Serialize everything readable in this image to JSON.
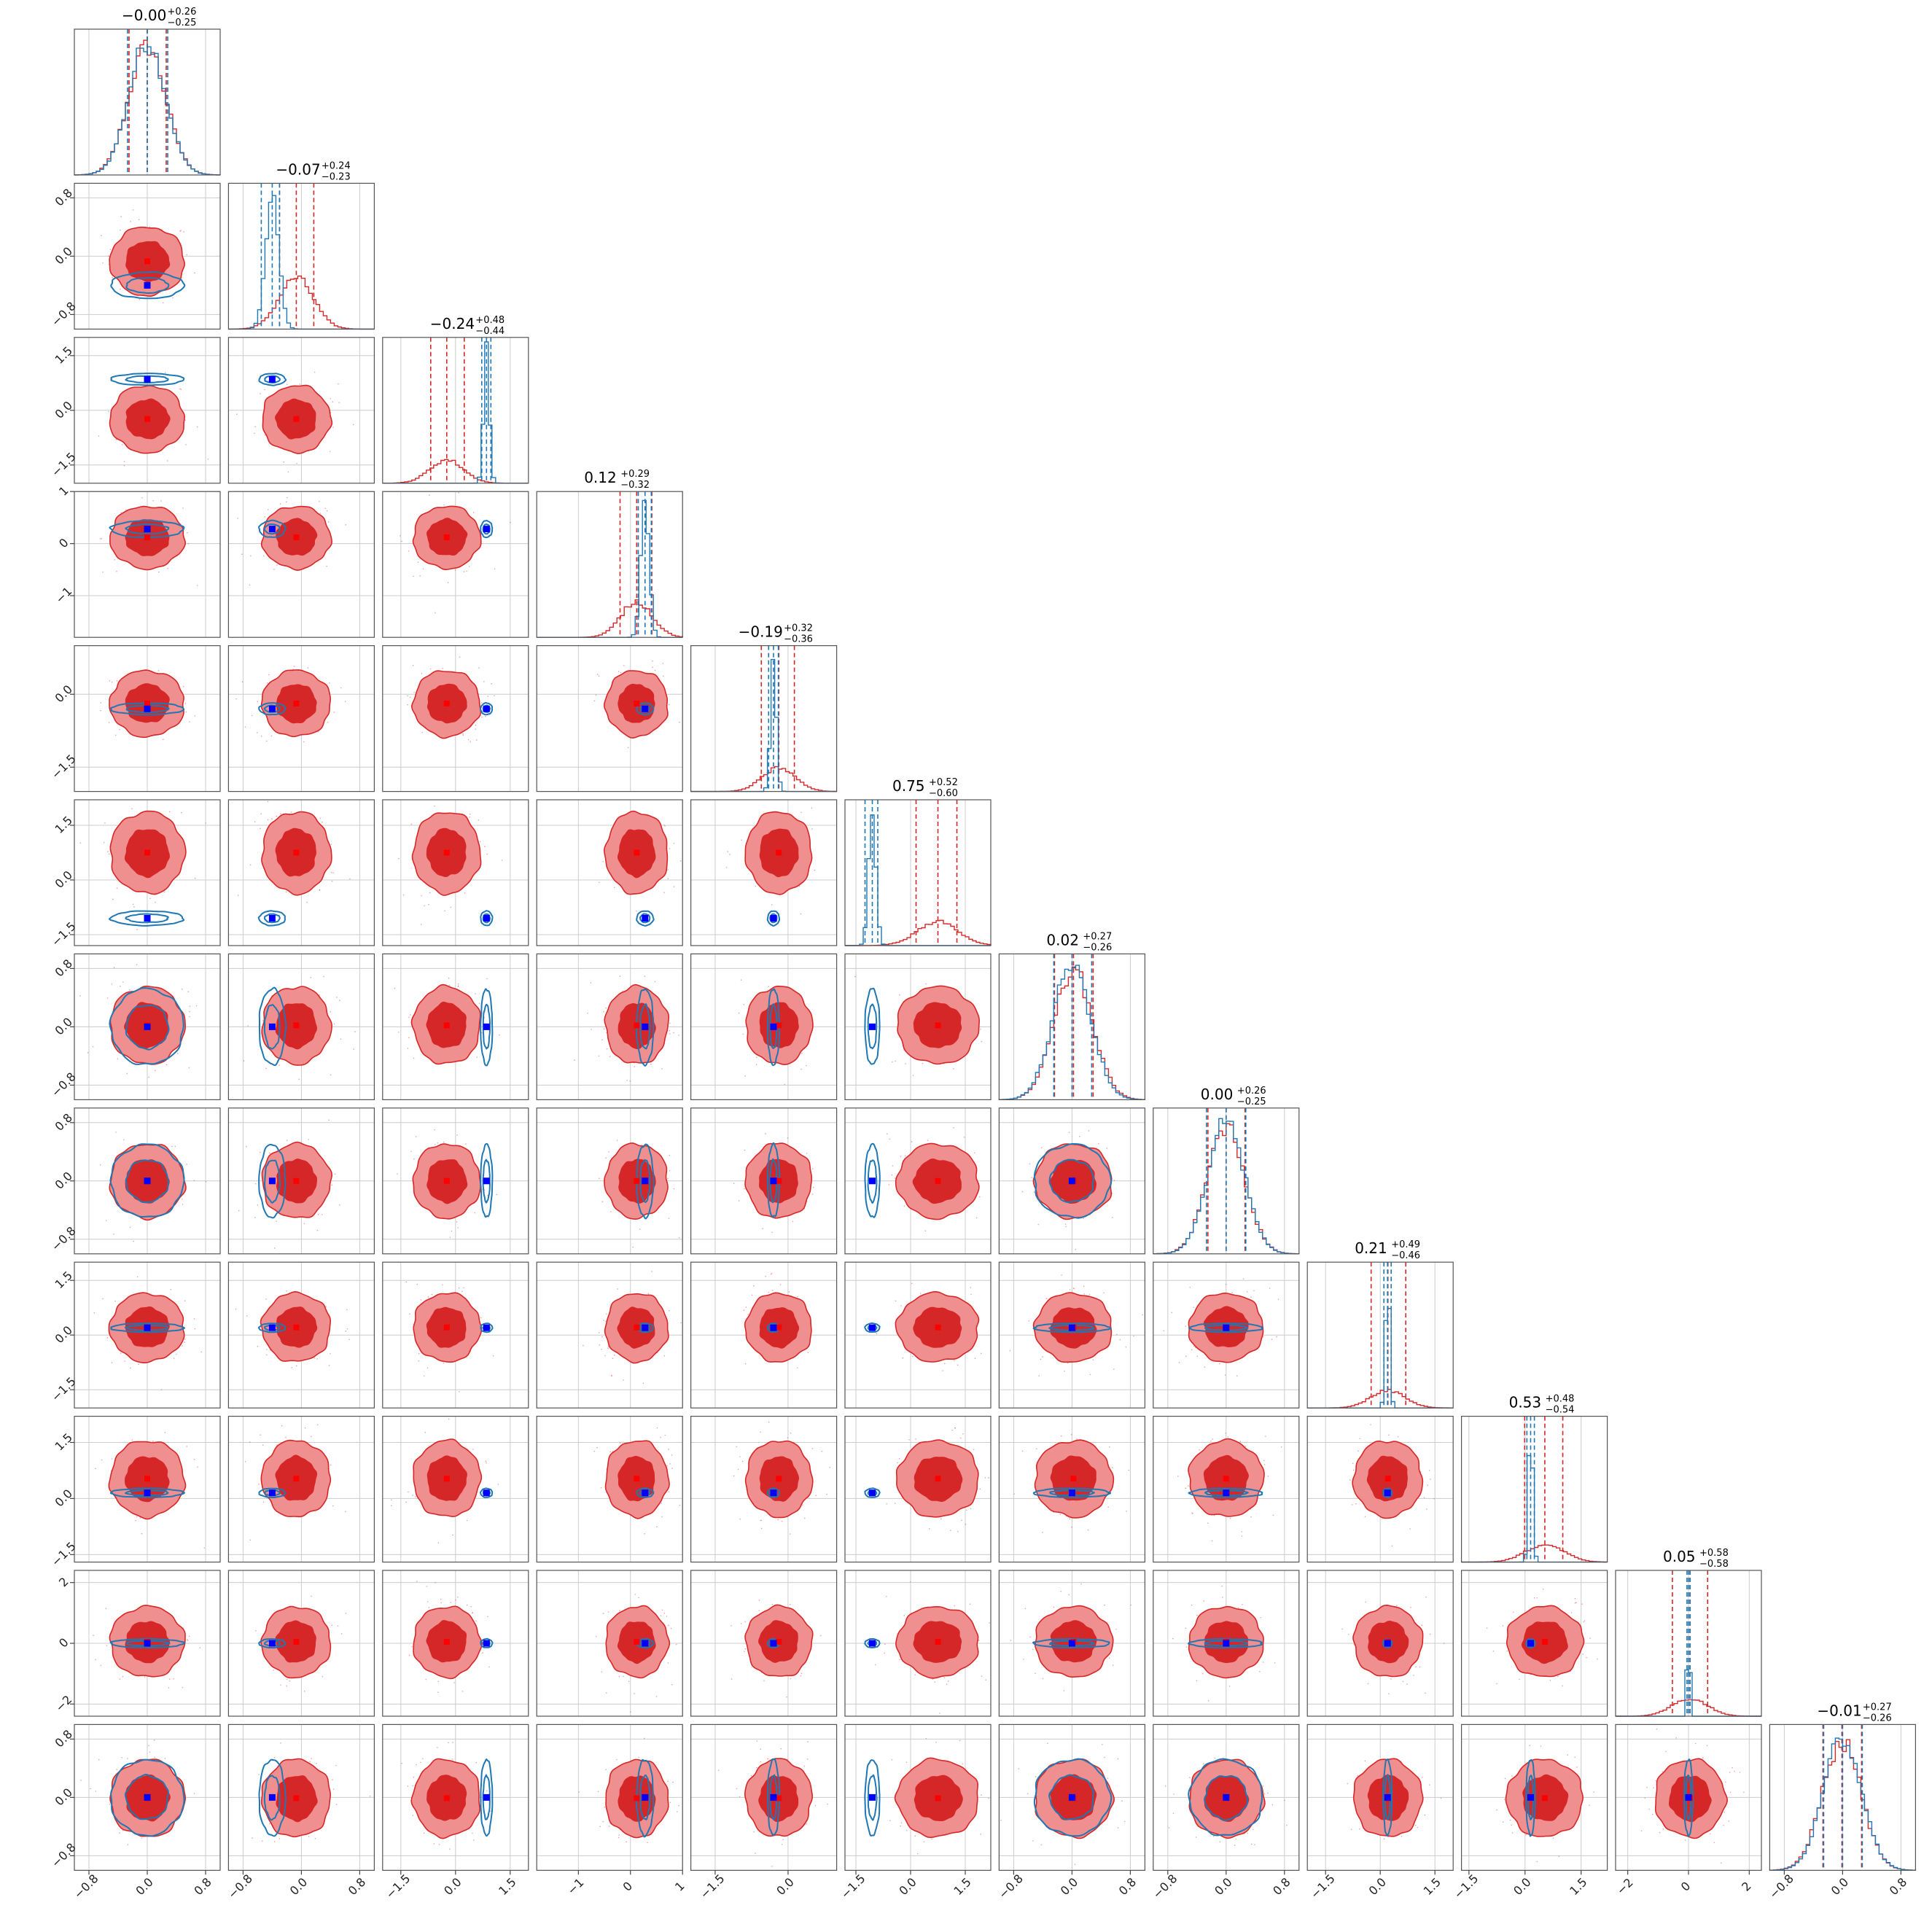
{
  "chart_data": {
    "type": "corner",
    "n_params": 12,
    "colors": {
      "red_fill_inner": "#d62728",
      "red_fill_outer": "#f08f8f",
      "red_line": "#d62728",
      "blue_line": "#1f77b4",
      "blue_marker": "#0000ff",
      "red_marker": "#ff0000"
    },
    "titles": [
      {
        "median": "−0.00",
        "plus": "+0.26",
        "minus": "−0.25"
      },
      {
        "median": "−0.07",
        "plus": "+0.24",
        "minus": "−0.23"
      },
      {
        "median": "−0.24",
        "plus": "+0.48",
        "minus": "−0.44"
      },
      {
        "median": "0.12",
        "plus": "+0.29",
        "minus": "−0.32"
      },
      {
        "median": "−0.19",
        "plus": "+0.32",
        "minus": "−0.36"
      },
      {
        "median": "0.75",
        "plus": "+0.52",
        "minus": "−0.60"
      },
      {
        "median": "0.02",
        "plus": "+0.27",
        "minus": "−0.26"
      },
      {
        "median": "0.00",
        "plus": "+0.26",
        "minus": "−0.25"
      },
      {
        "median": "0.21",
        "plus": "+0.49",
        "minus": "−0.46"
      },
      {
        "median": "0.53",
        "plus": "+0.48",
        "minus": "−0.54"
      },
      {
        "median": "0.05",
        "plus": "+0.58",
        "minus": "−0.58"
      },
      {
        "median": "−0.01",
        "plus": "+0.27",
        "minus": "−0.26"
      }
    ],
    "params": [
      {
        "range": [
          -1.0,
          1.0
        ],
        "ticks": [
          -0.8,
          0.0,
          0.8
        ],
        "tick_labels": [
          "−0.8",
          "0.0",
          "0.8"
        ],
        "red": {
          "mean": 0.0,
          "sd": 0.255
        },
        "blue": {
          "mean": 0.0,
          "sd": 0.25
        },
        "truth": 0.0,
        "red_q": [
          -0.25,
          0.26
        ],
        "blue_q": [
          -0.27,
          0.28
        ]
      },
      {
        "range": [
          -1.0,
          1.0
        ],
        "ticks": [
          -0.8,
          0.0,
          0.8
        ],
        "tick_labels": [
          "−0.8",
          "0.0",
          "0.8"
        ],
        "red": {
          "mean": -0.07,
          "sd": 0.235
        },
        "blue": {
          "mean": -0.4,
          "sd": 0.09
        },
        "truth": -0.4,
        "red_q": [
          -0.3,
          0.17
        ],
        "blue_q": [
          -0.55,
          -0.3
        ]
      },
      {
        "range": [
          -2.0,
          2.0
        ],
        "ticks": [
          -1.5,
          0.0,
          1.5
        ],
        "tick_labels": [
          "−1.5",
          "0.0",
          "1.5"
        ],
        "red": {
          "mean": -0.24,
          "sd": 0.46
        },
        "blue": {
          "mean": 0.85,
          "sd": 0.08
        },
        "truth": 0.85,
        "red_q": [
          -0.68,
          0.24
        ],
        "blue_q": [
          0.72,
          0.97
        ]
      },
      {
        "range": [
          -1.8,
          1.0
        ],
        "ticks": [
          -1.0,
          0.0,
          1.0
        ],
        "tick_labels": [
          "−1",
          "0",
          "1"
        ],
        "red": {
          "mean": 0.12,
          "sd": 0.3
        },
        "blue": {
          "mean": 0.28,
          "sd": 0.08
        },
        "truth": 0.28,
        "red_q": [
          -0.2,
          0.41
        ],
        "blue_q": [
          0.15,
          0.4
        ]
      },
      {
        "range": [
          -2.0,
          1.0
        ],
        "ticks": [
          -1.5,
          0.0
        ],
        "tick_labels": [
          "−1.5",
          "0.0"
        ],
        "red": {
          "mean": -0.19,
          "sd": 0.34
        },
        "blue": {
          "mean": -0.3,
          "sd": 0.06
        },
        "truth": -0.3,
        "red_q": [
          -0.55,
          0.13
        ],
        "blue_q": [
          -0.4,
          -0.2
        ]
      },
      {
        "range": [
          -1.8,
          2.2
        ],
        "ticks": [
          -1.5,
          0.0,
          1.5
        ],
        "tick_labels": [
          "−1.5",
          "0.0",
          "1.5"
        ],
        "red": {
          "mean": 0.75,
          "sd": 0.56
        },
        "blue": {
          "mean": -1.05,
          "sd": 0.1
        },
        "truth": -1.05,
        "red_q": [
          0.15,
          1.27
        ],
        "blue_q": [
          -1.25,
          -0.9
        ]
      },
      {
        "range": [
          -1.0,
          1.0
        ],
        "ticks": [
          -0.8,
          0.0,
          0.8
        ],
        "tick_labels": [
          "−0.8",
          "0.0",
          "0.8"
        ],
        "red": {
          "mean": 0.02,
          "sd": 0.265
        },
        "blue": {
          "mean": 0.0,
          "sd": 0.26
        },
        "truth": 0.0,
        "red_q": [
          -0.24,
          0.29
        ],
        "blue_q": [
          -0.25,
          0.27
        ]
      },
      {
        "range": [
          -1.0,
          1.0
        ],
        "ticks": [
          -0.8,
          0.0,
          0.8
        ],
        "tick_labels": [
          "−0.8",
          "0.0",
          "0.8"
        ],
        "red": {
          "mean": 0.0,
          "sd": 0.255
        },
        "blue": {
          "mean": 0.0,
          "sd": 0.25
        },
        "truth": 0.0,
        "red_q": [
          -0.25,
          0.26
        ],
        "blue_q": [
          -0.27,
          0.27
        ]
      },
      {
        "range": [
          -2.0,
          2.0
        ],
        "ticks": [
          -1.5,
          0.0,
          1.5
        ],
        "tick_labels": [
          "−1.5",
          "0.0",
          "1.5"
        ],
        "red": {
          "mean": 0.21,
          "sd": 0.47
        },
        "blue": {
          "mean": 0.2,
          "sd": 0.06
        },
        "truth": 0.2,
        "red_q": [
          -0.25,
          0.7
        ],
        "blue_q": [
          0.1,
          0.3
        ]
      },
      {
        "range": [
          -1.7,
          2.2
        ],
        "ticks": [
          -1.5,
          0.0,
          1.5
        ],
        "tick_labels": [
          "−1.5",
          "0.0",
          "1.5"
        ],
        "red": {
          "mean": 0.53,
          "sd": 0.51
        },
        "blue": {
          "mean": 0.15,
          "sd": 0.06
        },
        "truth": 0.15,
        "red_q": [
          -0.01,
          1.01
        ],
        "blue_q": [
          0.05,
          0.25
        ]
      },
      {
        "range": [
          -2.4,
          2.4
        ],
        "ticks": [
          -2,
          0,
          2
        ],
        "tick_labels": [
          "−2",
          "0",
          "2"
        ],
        "red": {
          "mean": 0.05,
          "sd": 0.58
        },
        "blue": {
          "mean": 0.0,
          "sd": 0.04
        },
        "truth": 0.0,
        "red_q": [
          -0.53,
          0.63
        ],
        "blue_q": [
          -0.05,
          0.05
        ]
      },
      {
        "range": [
          -1.0,
          1.0
        ],
        "ticks": [
          -0.8,
          0.0,
          0.8
        ],
        "tick_labels": [
          "−0.8",
          "0.0",
          "0.8"
        ],
        "red": {
          "mean": -0.01,
          "sd": 0.265
        },
        "blue": {
          "mean": 0.0,
          "sd": 0.26
        },
        "truth": 0.0,
        "red_q": [
          -0.27,
          0.26
        ],
        "blue_q": [
          -0.26,
          0.27
        ]
      }
    ],
    "red_median_offsets": [
      [
        0.0,
        0.0
      ],
      [
        -0.07,
        0.0
      ],
      [
        -0.24,
        -0.15
      ],
      [
        0.12,
        -0.5
      ],
      [
        -0.19,
        -0.2
      ],
      [
        0.75,
        -0.3
      ],
      [
        0.02,
        0.0
      ],
      [
        0.0,
        0.0
      ],
      [
        0.21,
        0.21
      ],
      [
        0.53,
        0.3
      ],
      [
        0.05,
        0.0
      ],
      [
        -0.01,
        0.0
      ]
    ],
    "grid": true,
    "legend": "none"
  }
}
